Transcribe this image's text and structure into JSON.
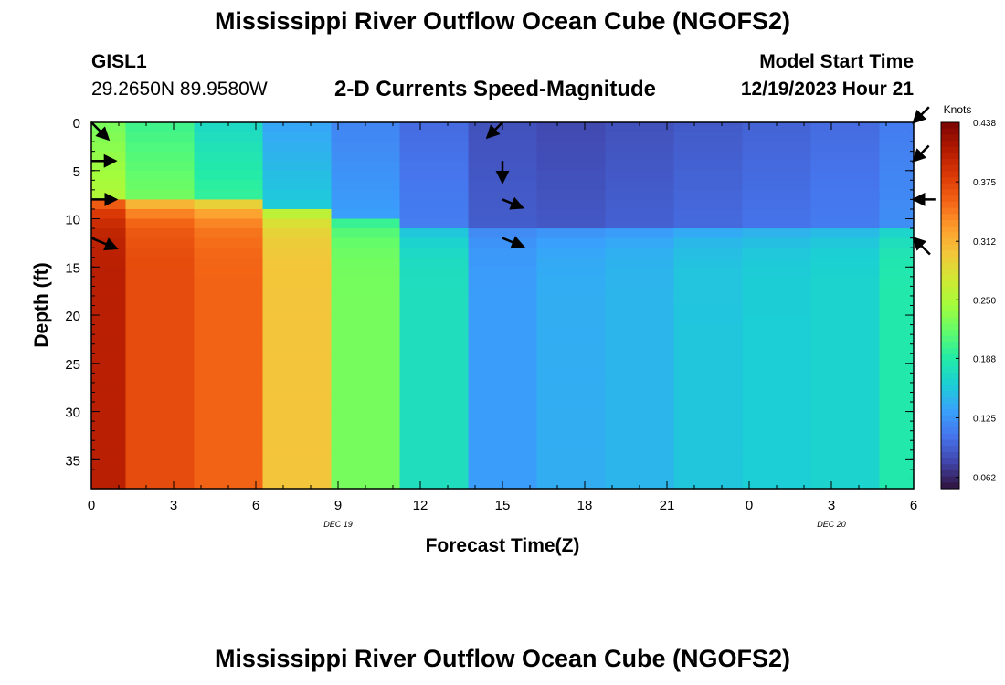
{
  "header": {
    "title": "Mississippi River Outflow Ocean Cube (NGOFS2)",
    "station_id": "GISL1",
    "station_coords": "29.2650N  89.9580W",
    "subtitle": "2-D Currents Speed-Magnitude",
    "model_start_label": "Model Start Time",
    "model_start_value": "12/19/2023 Hour 21"
  },
  "footer": {
    "repeat_title": "Mississippi River Outflow Ocean Cube (NGOFS2)"
  },
  "colors": {
    "arrow": "#000000",
    "colormap": [
      "#30123b",
      "#4145ab",
      "#4675ed",
      "#39a2fc",
      "#1bcfd4",
      "#24eca6",
      "#61fc6c",
      "#a4fc3b",
      "#d1e834",
      "#f3c63a",
      "#fe9b2d",
      "#f36315",
      "#d93806",
      "#b11901",
      "#7a0402"
    ]
  },
  "chart_data": {
    "type": "heatmap",
    "xlabel": "Forecast Time(Z)",
    "ylabel": "Depth (ft)",
    "x_tick_labels": [
      "0",
      "3",
      "6",
      "9",
      "12",
      "15",
      "18",
      "21",
      "0",
      "3",
      "6"
    ],
    "x_date_labels": [
      {
        "label": "DEC 19",
        "at_tick": 3
      },
      {
        "label": "DEC 20",
        "at_tick": 9
      }
    ],
    "y_ticks": [
      0,
      5,
      10,
      15,
      20,
      25,
      30,
      35
    ],
    "ylim": [
      0,
      38
    ],
    "y_inverted": true,
    "colorbar": {
      "title": "Knots",
      "range": [
        0.05,
        0.438
      ],
      "tick_labels": [
        "0.438",
        "0.375",
        "0.312",
        "0.250",
        "0.188",
        "0.125",
        "0.062"
      ]
    },
    "columns": [
      {
        "x": [
          0,
          1.25
        ],
        "shallow": 0.225,
        "deep": 0.405,
        "transition": 8
      },
      {
        "x": [
          1.25,
          3.75
        ],
        "shallow": 0.2,
        "deep": 0.37,
        "transition": 8.5
      },
      {
        "x": [
          3.75,
          6.25
        ],
        "shallow": 0.17,
        "deep": 0.355,
        "transition": 8.5
      },
      {
        "x": [
          6.25,
          8.75
        ],
        "shallow": 0.135,
        "deep": 0.3,
        "transition": 9
      },
      {
        "x": [
          8.75,
          11.25
        ],
        "shallow": 0.115,
        "deep": 0.225,
        "transition": 10
      },
      {
        "x": [
          11.25,
          13.75
        ],
        "shallow": 0.1,
        "deep": 0.175,
        "transition": 11
      },
      {
        "x": [
          13.75,
          16.25
        ],
        "shallow": 0.085,
        "deep": 0.13,
        "transition": 11
      },
      {
        "x": [
          16.25,
          18.75
        ],
        "shallow": 0.08,
        "deep": 0.14,
        "transition": 11
      },
      {
        "x": [
          18.75,
          21.25
        ],
        "shallow": 0.085,
        "deep": 0.145,
        "transition": 11
      },
      {
        "x": [
          21.25,
          23.75
        ],
        "shallow": 0.09,
        "deep": 0.155,
        "transition": 11
      },
      {
        "x": [
          23.75,
          26.25
        ],
        "shallow": 0.095,
        "deep": 0.16,
        "transition": 11
      },
      {
        "x": [
          26.25,
          28.75
        ],
        "shallow": 0.1,
        "deep": 0.165,
        "transition": 11
      },
      {
        "x": [
          28.75,
          30
        ],
        "shallow": 0.11,
        "deep": 0.185,
        "transition": 11
      }
    ],
    "vectors": [
      {
        "time": 0,
        "depth": 0,
        "speed": 0.22,
        "direction": "southeast"
      },
      {
        "time": 0,
        "depth": 4,
        "speed": 0.21,
        "direction": "east"
      },
      {
        "time": 0,
        "depth": 8,
        "speed": 0.24,
        "direction": "east"
      },
      {
        "time": 0,
        "depth": 12,
        "speed": 0.39,
        "direction": "east-southeast"
      },
      {
        "time": 15,
        "depth": 0,
        "speed": 0.08,
        "direction": "southwest"
      },
      {
        "time": 15,
        "depth": 4,
        "speed": 0.06,
        "direction": "south"
      },
      {
        "time": 15,
        "depth": 8,
        "speed": 0.08,
        "direction": "east-southeast"
      },
      {
        "time": 15,
        "depth": 12,
        "speed": 0.13,
        "direction": "east-southeast"
      },
      {
        "time": 30,
        "depth": 0,
        "speed": 0.1,
        "direction": "southwest"
      },
      {
        "time": 30,
        "depth": 4,
        "speed": 0.09,
        "direction": "southwest"
      },
      {
        "time": 30,
        "depth": 8,
        "speed": 0.09,
        "direction": "west"
      },
      {
        "time": 30,
        "depth": 12,
        "speed": 0.18,
        "direction": "northwest"
      }
    ]
  }
}
